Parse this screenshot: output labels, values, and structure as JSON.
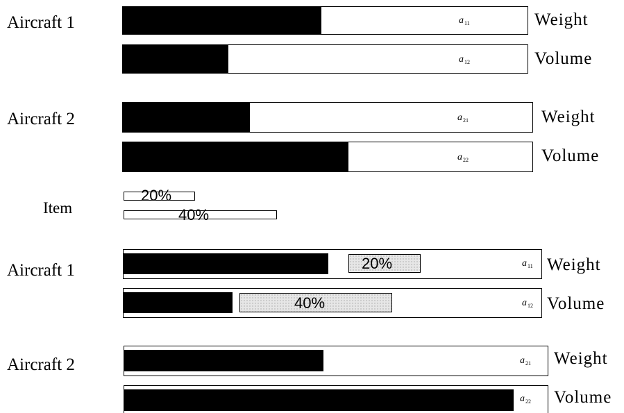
{
  "upper": {
    "aircraft_1": {
      "label": "Aircraft 1",
      "weight": {
        "symbol": "a",
        "index": "11",
        "label": "Weight",
        "fill_fraction": 0.49
      },
      "volume": {
        "symbol": "a",
        "index": "12",
        "label": "Volume",
        "fill_fraction": 0.26
      }
    },
    "aircraft_2": {
      "label": "Aircraft 2",
      "weight": {
        "symbol": "a",
        "index": "21",
        "label": "Weight",
        "fill_fraction": 0.31
      },
      "volume": {
        "symbol": "a",
        "index": "22",
        "label": "Volume",
        "fill_fraction": 0.55
      }
    }
  },
  "item": {
    "label": "Item",
    "weight_pct": "20%",
    "volume_pct": "40%"
  },
  "lower": {
    "aircraft_1": {
      "label": "Aircraft 1",
      "weight": {
        "symbol": "a",
        "index": "11",
        "label": "Weight",
        "fill_fraction": 0.49,
        "item_pct": "20%"
      },
      "volume": {
        "symbol": "a",
        "index": "12",
        "label": "Volume",
        "fill_fraction": 0.26,
        "item_pct": "40%"
      }
    },
    "aircraft_2": {
      "label": "Aircraft 2",
      "weight": {
        "symbol": "a",
        "index": "21",
        "label": "Weight",
        "fill_fraction": 0.47
      },
      "volume": {
        "symbol": "a",
        "index": "22",
        "label": "Volume",
        "fill_fraction": 0.92
      }
    }
  }
}
